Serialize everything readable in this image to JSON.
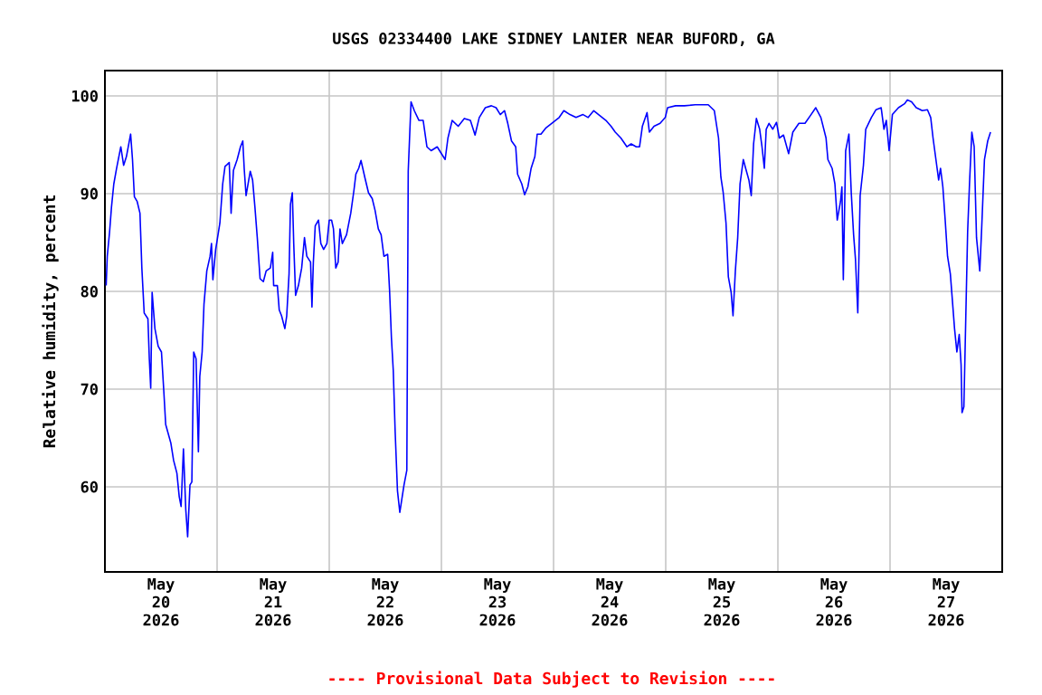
{
  "chart_data": {
    "type": "line",
    "title": "USGS 02334400 LAKE SIDNEY LANIER NEAR BUFORD, GA",
    "ylabel": "Relative humidity, percent",
    "annotations": [
      "---- Provisional Data Subject to Revision ----"
    ],
    "xlim": [
      "2026-05-20T00:00",
      "2026-05-28T00:00"
    ],
    "ylim": [
      51.3,
      102.6
    ],
    "yticks": [
      60,
      70,
      80,
      90,
      100
    ],
    "grid": true,
    "xticks": [
      {
        "value": "2026-05-20T12:00",
        "label": "May 20 2026"
      },
      {
        "value": "2026-05-21T12:00",
        "label": "May 21 2026"
      },
      {
        "value": "2026-05-22T12:00",
        "label": "May 22 2026"
      },
      {
        "value": "2026-05-23T12:00",
        "label": "May 23 2026"
      },
      {
        "value": "2026-05-24T12:00",
        "label": "May 24 2026"
      },
      {
        "value": "2026-05-25T12:00",
        "label": "May 25 2026"
      },
      {
        "value": "2026-05-26T12:00",
        "label": "May 26 2026"
      },
      {
        "value": "2026-05-27T12:00",
        "label": "May 27 2026"
      },
      {
        "value": "2026-05-21T00:00",
        "label": null
      },
      {
        "value": "2026-05-22T00:00",
        "label": null
      },
      {
        "value": "2026-05-23T00:00",
        "label": null
      },
      {
        "value": "2026-05-24T00:00",
        "label": null
      },
      {
        "value": "2026-05-25T00:00",
        "label": null
      },
      {
        "value": "2026-05-26T00:00",
        "label": null
      },
      {
        "value": "2026-05-27T00:00",
        "label": null
      }
    ],
    "series": [
      {
        "color": "#0000ff",
        "x": [
          "2026-05-20T00:16",
          "2026-05-20T00:30",
          "2026-05-20T01:00",
          "2026-05-20T01:24",
          "2026-05-20T01:54",
          "2026-05-20T02:30",
          "2026-05-20T03:24",
          "2026-05-20T04:00",
          "2026-05-20T04:36",
          "2026-05-20T05:30",
          "2026-05-20T05:54",
          "2026-05-20T06:18",
          "2026-05-20T06:54",
          "2026-05-20T07:30",
          "2026-05-20T07:54",
          "2026-05-20T08:24",
          "2026-05-20T09:12",
          "2026-05-20T09:30",
          "2026-05-20T09:48",
          "2026-05-20T10:06",
          "2026-05-20T10:42",
          "2026-05-20T11:24",
          "2026-05-20T12:06",
          "2026-05-20T12:36",
          "2026-05-20T13:00",
          "2026-05-20T14:06",
          "2026-05-20T14:42",
          "2026-05-20T15:24",
          "2026-05-20T15:54",
          "2026-05-20T16:18",
          "2026-05-20T16:48",
          "2026-05-20T17:18",
          "2026-05-20T17:42",
          "2026-05-20T18:12",
          "2026-05-20T18:36",
          "2026-05-20T19:00",
          "2026-05-20T19:30",
          "2026-05-20T20:00",
          "2026-05-20T20:18",
          "2026-05-20T20:48",
          "2026-05-20T21:12",
          "2026-05-20T21:48",
          "2026-05-20T22:30",
          "2026-05-20T22:48",
          "2026-05-20T23:06",
          "2026-05-20T23:42",
          "2026-05-21T00:36",
          "2026-05-21T01:12",
          "2026-05-21T01:42",
          "2026-05-21T02:12",
          "2026-05-21T02:36",
          "2026-05-21T03:00",
          "2026-05-21T03:30",
          "2026-05-21T04:18",
          "2026-05-21T05:00",
          "2026-05-21T05:30",
          "2026-05-21T05:48",
          "2026-05-21T06:12",
          "2026-05-21T07:06",
          "2026-05-21T07:36",
          "2026-05-21T08:06",
          "2026-05-21T08:36",
          "2026-05-21T09:12",
          "2026-05-21T09:54",
          "2026-05-21T10:30",
          "2026-05-21T11:24",
          "2026-05-21T11:54",
          "2026-05-21T12:06",
          "2026-05-21T12:54",
          "2026-05-21T13:18",
          "2026-05-21T13:48",
          "2026-05-21T14:30",
          "2026-05-21T14:54",
          "2026-05-21T15:24",
          "2026-05-21T15:42",
          "2026-05-21T16:06",
          "2026-05-21T16:24",
          "2026-05-21T16:48",
          "2026-05-21T17:24",
          "2026-05-21T18:06",
          "2026-05-21T18:42",
          "2026-05-21T19:12",
          "2026-05-21T20:00",
          "2026-05-21T20:18",
          "2026-05-21T20:36",
          "2026-05-21T21:00",
          "2026-05-21T21:42",
          "2026-05-21T22:12",
          "2026-05-21T22:48",
          "2026-05-21T23:30",
          "2026-05-22T00:00",
          "2026-05-22T00:30",
          "2026-05-22T00:54",
          "2026-05-22T01:24",
          "2026-05-22T01:54",
          "2026-05-22T02:18",
          "2026-05-22T02:48",
          "2026-05-22T03:42",
          "2026-05-22T04:36",
          "2026-05-22T05:18",
          "2026-05-22T05:42",
          "2026-05-22T06:18",
          "2026-05-22T06:48",
          "2026-05-22T07:36",
          "2026-05-22T08:24",
          "2026-05-22T09:12",
          "2026-05-22T09:48",
          "2026-05-22T10:30",
          "2026-05-22T11:06",
          "2026-05-22T11:42",
          "2026-05-22T12:30",
          "2026-05-22T12:54",
          "2026-05-22T13:18",
          "2026-05-22T13:42",
          "2026-05-22T14:06",
          "2026-05-22T14:36",
          "2026-05-22T15:06",
          "2026-05-22T16:00",
          "2026-05-22T16:36",
          "2026-05-22T16:54",
          "2026-05-22T17:30",
          "2026-05-22T18:12",
          "2026-05-22T19:12",
          "2026-05-22T20:06",
          "2026-05-22T20:54",
          "2026-05-22T21:48",
          "2026-05-22T23:06",
          "2026-05-23T00:00",
          "2026-05-23T00:48",
          "2026-05-23T01:24",
          "2026-05-23T02:18",
          "2026-05-23T03:36",
          "2026-05-23T04:54",
          "2026-05-23T06:12",
          "2026-05-23T07:12",
          "2026-05-23T08:06",
          "2026-05-23T09:24",
          "2026-05-23T10:42",
          "2026-05-23T11:42",
          "2026-05-23T12:36",
          "2026-05-23T13:30",
          "2026-05-23T14:12",
          "2026-05-23T15:00",
          "2026-05-23T15:54",
          "2026-05-23T16:18",
          "2026-05-23T17:12",
          "2026-05-23T17:48",
          "2026-05-23T18:30",
          "2026-05-23T19:12",
          "2026-05-23T20:00",
          "2026-05-23T20:30",
          "2026-05-23T21:18",
          "2026-05-23T22:18",
          "2026-05-23T23:36",
          "2026-05-24T01:12",
          "2026-05-24T02:12",
          "2026-05-24T03:30",
          "2026-05-24T04:48",
          "2026-05-24T06:18",
          "2026-05-24T07:24",
          "2026-05-24T08:36",
          "2026-05-24T09:54",
          "2026-05-24T11:12",
          "2026-05-24T12:18",
          "2026-05-24T13:12",
          "2026-05-24T14:24",
          "2026-05-24T15:42",
          "2026-05-24T16:36",
          "2026-05-24T17:42",
          "2026-05-24T18:24",
          "2026-05-24T19:00",
          "2026-05-24T20:00",
          "2026-05-24T20:30",
          "2026-05-24T21:30",
          "2026-05-24T22:48",
          "2026-05-24T23:54",
          "2026-05-25T00:24",
          "2026-05-25T02:06",
          "2026-05-25T04:00",
          "2026-05-25T06:18",
          "2026-05-25T09:06",
          "2026-05-25T10:24",
          "2026-05-25T11:18",
          "2026-05-25T11:48",
          "2026-05-25T12:18",
          "2026-05-25T12:54",
          "2026-05-25T13:24",
          "2026-05-25T14:00",
          "2026-05-25T14:24",
          "2026-05-25T14:54",
          "2026-05-25T15:24",
          "2026-05-25T15:54",
          "2026-05-25T16:36",
          "2026-05-25T17:06",
          "2026-05-25T17:48",
          "2026-05-25T18:18",
          "2026-05-25T18:48",
          "2026-05-25T19:24",
          "2026-05-25T20:06",
          "2026-05-25T20:36",
          "2026-05-25T21:06",
          "2026-05-25T21:30",
          "2026-05-25T22:06",
          "2026-05-25T22:54",
          "2026-05-25T23:42",
          "2026-05-26T00:18",
          "2026-05-26T01:12",
          "2026-05-26T02:18",
          "2026-05-26T03:12",
          "2026-05-26T04:30",
          "2026-05-26T05:48",
          "2026-05-26T07:06",
          "2026-05-26T08:06",
          "2026-05-26T09:12",
          "2026-05-26T10:18",
          "2026-05-26T10:42",
          "2026-05-26T11:36",
          "2026-05-26T12:12",
          "2026-05-26T12:42",
          "2026-05-26T13:24",
          "2026-05-26T13:42",
          "2026-05-26T14:00",
          "2026-05-26T14:30",
          "2026-05-26T15:12",
          "2026-05-26T15:42",
          "2026-05-26T16:12",
          "2026-05-26T16:36",
          "2026-05-26T17:06",
          "2026-05-26T17:36",
          "2026-05-26T18:18",
          "2026-05-26T18:48",
          "2026-05-26T20:00",
          "2026-05-26T21:00",
          "2026-05-26T22:06",
          "2026-05-26T22:42",
          "2026-05-26T23:12",
          "2026-05-26T23:48",
          "2026-05-27T00:30",
          "2026-05-27T01:48",
          "2026-05-27T03:06",
          "2026-05-27T03:42",
          "2026-05-27T04:36",
          "2026-05-27T05:36",
          "2026-05-27T06:54",
          "2026-05-27T08:00",
          "2026-05-27T08:42",
          "2026-05-27T09:12",
          "2026-05-27T09:54",
          "2026-05-27T10:24",
          "2026-05-27T10:48",
          "2026-05-27T11:18",
          "2026-05-27T11:48",
          "2026-05-27T12:18",
          "2026-05-27T12:54",
          "2026-05-27T13:24",
          "2026-05-27T13:48",
          "2026-05-27T14:18",
          "2026-05-27T14:48",
          "2026-05-27T15:12",
          "2026-05-27T15:24",
          "2026-05-27T15:48",
          "2026-05-27T16:12",
          "2026-05-27T16:36",
          "2026-05-27T17:00",
          "2026-05-27T17:30",
          "2026-05-27T18:00",
          "2026-05-27T18:30",
          "2026-05-27T19:12",
          "2026-05-27T19:36",
          "2026-05-27T20:12",
          "2026-05-27T20:54",
          "2026-05-27T21:30"
        ],
        "values": [
          80.6,
          83.6,
          86.1,
          88.6,
          91.0,
          92.6,
          94.8,
          92.9,
          93.8,
          96.1,
          93.5,
          89.7,
          89.2,
          88.0,
          82.4,
          77.8,
          77.2,
          73.1,
          70.1,
          79.9,
          76.2,
          74.4,
          73.8,
          69.8,
          66.4,
          64.5,
          62.7,
          61.4,
          59.0,
          58.0,
          63.9,
          57.7,
          54.9,
          60.2,
          60.5,
          73.8,
          73.1,
          63.6,
          71.3,
          73.8,
          78.7,
          82.1,
          83.6,
          84.9,
          81.2,
          84.3,
          87.0,
          91.0,
          92.8,
          93.0,
          93.2,
          88.0,
          92.4,
          93.5,
          94.8,
          95.4,
          92.6,
          89.8,
          92.3,
          91.4,
          88.6,
          85.5,
          81.3,
          81.0,
          82.1,
          82.4,
          84.0,
          80.6,
          80.6,
          78.1,
          77.5,
          76.2,
          77.5,
          81.8,
          88.9,
          90.1,
          84.9,
          79.6,
          80.6,
          82.4,
          85.5,
          83.6,
          83.0,
          78.4,
          83.0,
          86.7,
          87.3,
          84.9,
          84.3,
          84.9,
          87.3,
          87.3,
          86.4,
          82.4,
          83.0,
          86.4,
          84.9,
          85.8,
          88.0,
          90.4,
          92.0,
          92.6,
          93.4,
          91.7,
          90.1,
          89.5,
          88.3,
          86.4,
          85.8,
          83.6,
          83.8,
          80.2,
          75.3,
          71.9,
          65.7,
          59.6,
          57.4,
          60.2,
          61.7,
          92.3,
          99.4,
          98.5,
          97.5,
          97.5,
          94.8,
          94.4,
          94.8,
          94.1,
          93.5,
          95.7,
          97.5,
          96.9,
          97.7,
          97.5,
          96.0,
          97.8,
          98.8,
          99.0,
          98.8,
          98.1,
          98.5,
          97.2,
          95.4,
          94.8,
          92.0,
          91.0,
          89.9,
          90.7,
          92.6,
          93.8,
          96.1,
          96.1,
          96.7,
          97.2,
          97.8,
          98.5,
          98.1,
          97.8,
          98.1,
          97.8,
          98.5,
          98.0,
          97.5,
          96.9,
          96.3,
          95.7,
          94.8,
          95.1,
          94.8,
          94.8,
          96.9,
          98.3,
          96.3,
          96.9,
          97.2,
          97.8,
          98.8,
          99.0,
          99.0,
          99.1,
          99.1,
          98.5,
          95.7,
          91.7,
          90.1,
          87.0,
          81.5,
          79.9,
          77.5,
          82.1,
          85.5,
          91.0,
          93.5,
          92.6,
          91.4,
          89.8,
          95.1,
          97.7,
          96.6,
          94.8,
          92.6,
          96.6,
          97.2,
          96.6,
          97.3,
          95.7,
          96.0,
          94.1,
          96.3,
          97.2,
          97.2,
          98.1,
          98.8,
          97.8,
          95.7,
          93.5,
          92.6,
          91.0,
          87.3,
          89.2,
          90.7,
          81.2,
          94.4,
          96.1,
          90.1,
          85.8,
          83.3,
          77.8,
          89.8,
          92.9,
          96.6,
          97.8,
          98.6,
          98.8,
          96.6,
          97.5,
          94.4,
          98.1,
          98.8,
          99.2,
          99.6,
          99.4,
          98.8,
          98.5,
          98.6,
          97.8,
          95.7,
          93.2,
          91.4,
          92.6,
          90.7,
          87.3,
          83.6,
          81.8,
          78.7,
          76.2,
          73.8,
          75.6,
          72.5,
          67.6,
          68.2,
          77.2,
          86.1,
          91.0,
          96.3,
          94.8,
          85.5,
          82.1,
          86.4,
          93.5,
          95.4,
          96.3
        ]
      }
    ]
  }
}
